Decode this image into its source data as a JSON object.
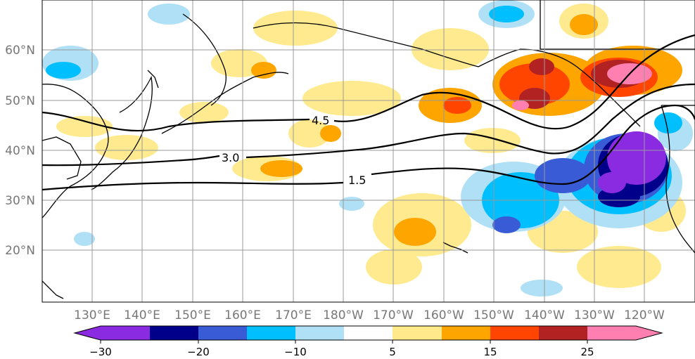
{
  "map": {
    "lat_labels": [
      "60°N",
      "50°N",
      "40°N",
      "30°N",
      "20°N"
    ],
    "lon_labels": [
      "130°E",
      "140°E",
      "150°E",
      "160°E",
      "170°E",
      "180°W",
      "170°W",
      "160°W",
      "150°W",
      "140°W",
      "130°W",
      "120°W"
    ],
    "contours": [
      {
        "label": "4.5"
      },
      {
        "label": "3.0"
      },
      {
        "label": "1.5"
      }
    ]
  },
  "colorbar": {
    "tick_labels": [
      "−30",
      "−20",
      "−10",
      "5",
      "15",
      "25"
    ],
    "colors": [
      "#8a2be2",
      "#00008b",
      "#3a5bd6",
      "#00bfff",
      "#b0e0f6",
      "#ffffff",
      "#ffe98a",
      "#ffa500",
      "#ff4500",
      "#b22222",
      "#ff7fb0"
    ]
  },
  "colors": {
    "land_outline": "#000000",
    "grid": "#999999",
    "contour": "#000000"
  }
}
